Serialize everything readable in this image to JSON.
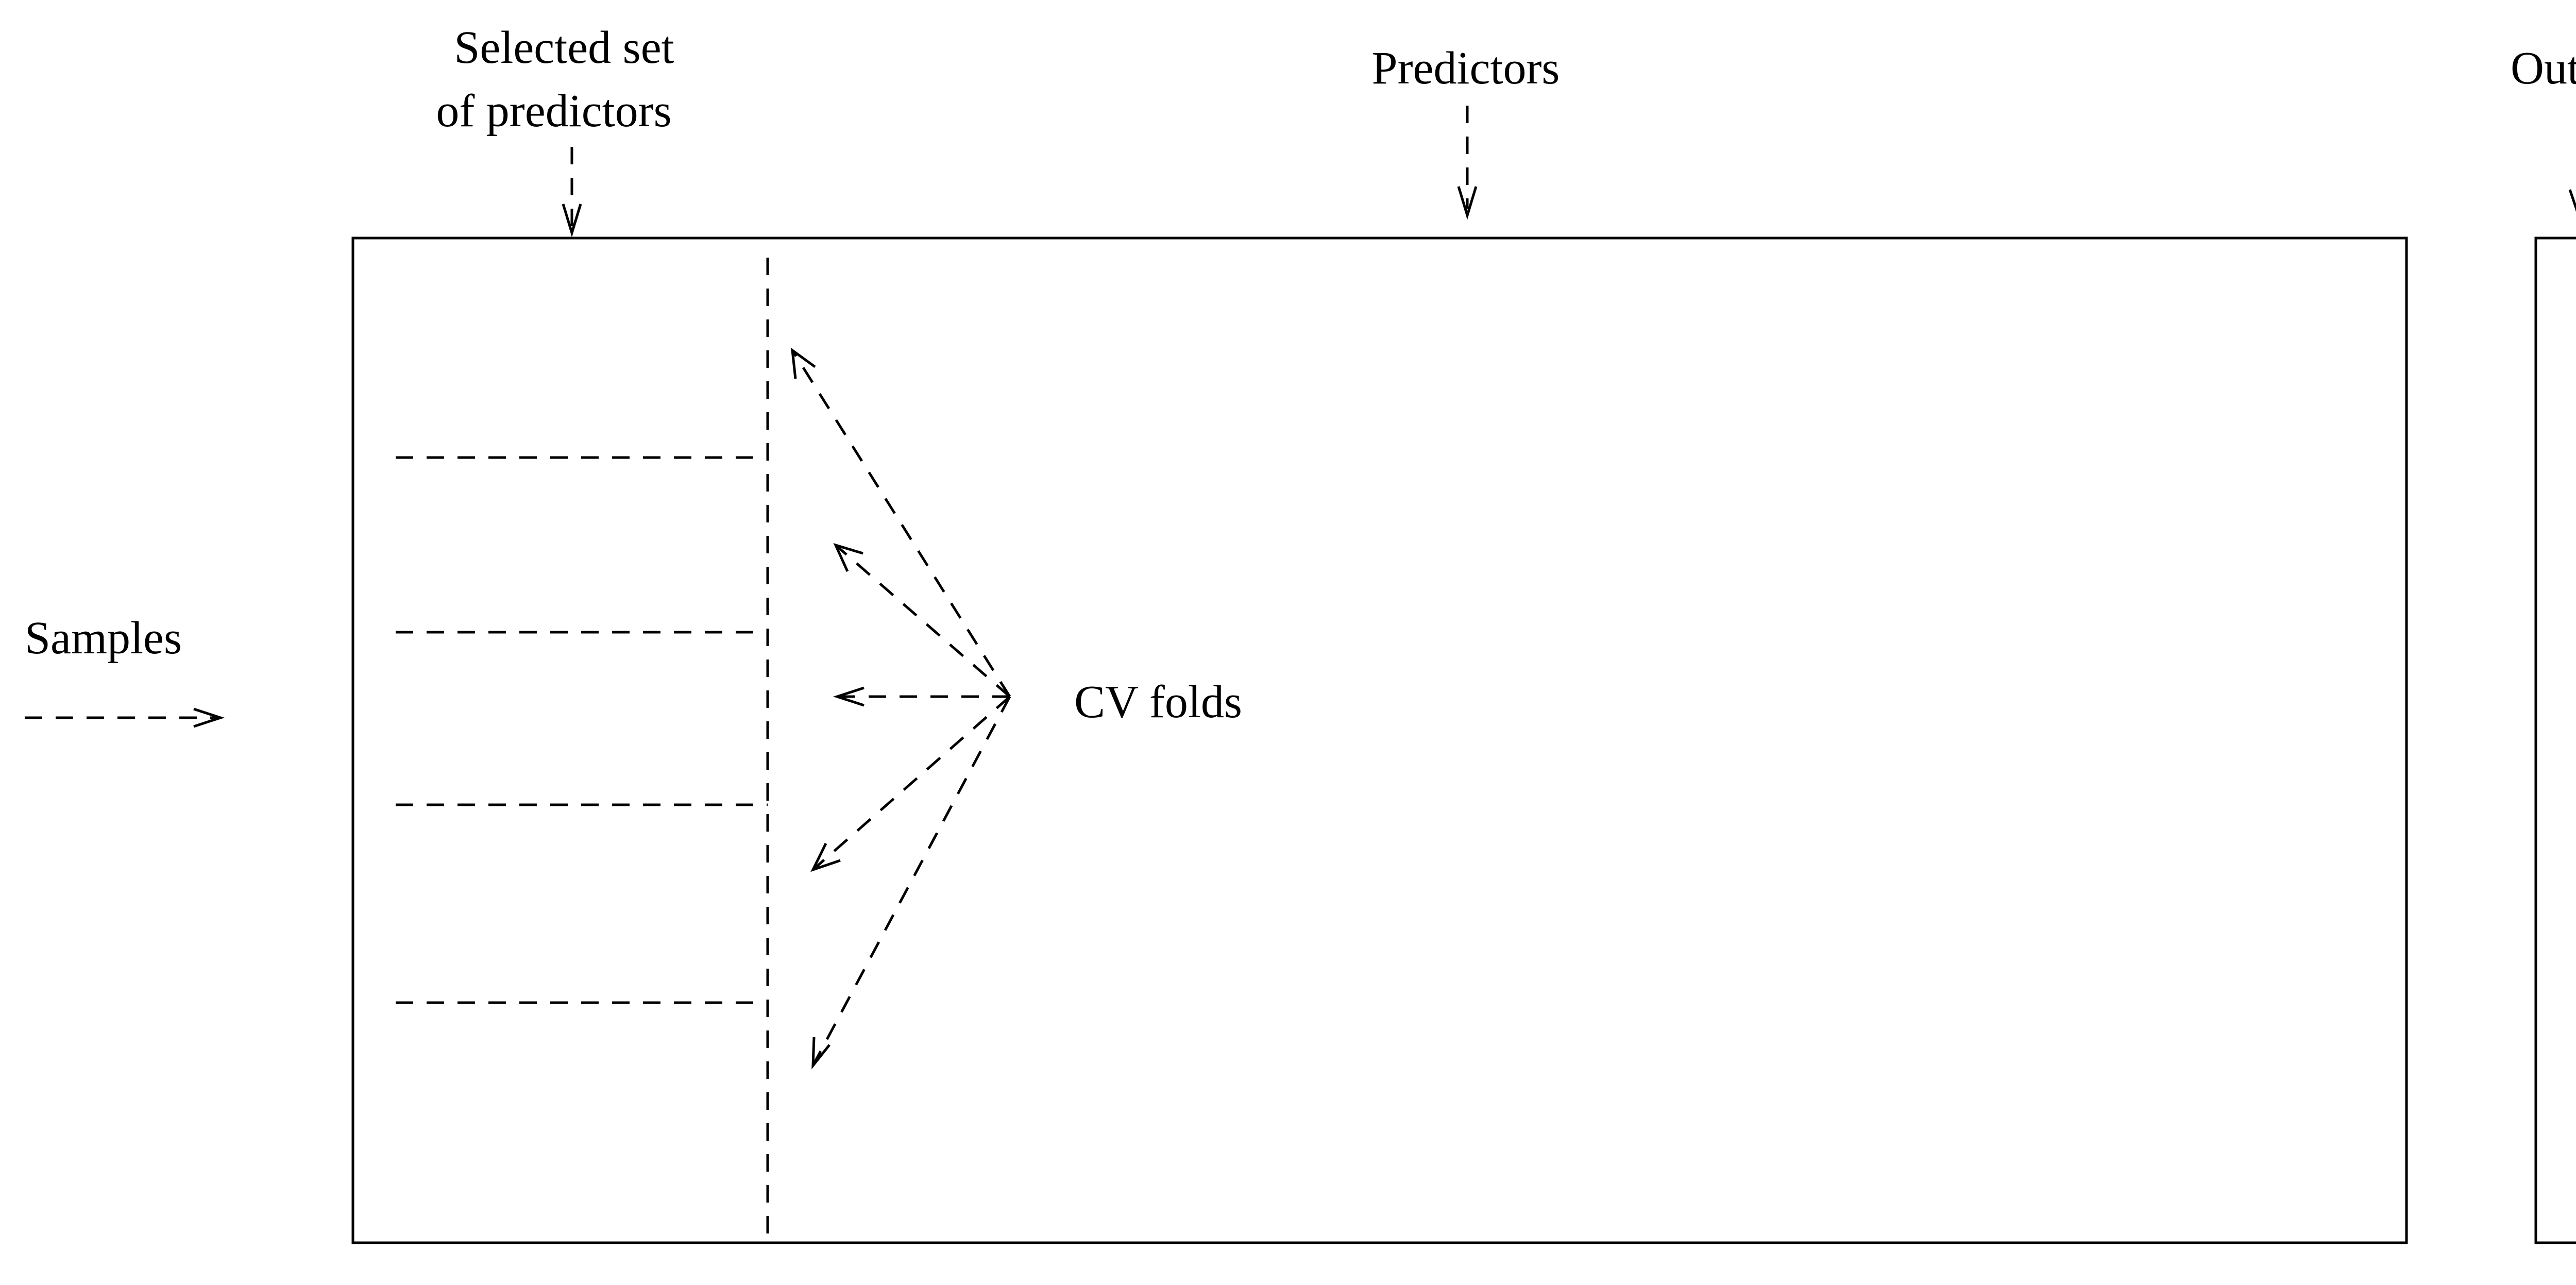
{
  "labels": {
    "selected_line1": "Selected set",
    "selected_line2": "of predictors",
    "predictors": "Predictors",
    "outcome": "Outcome",
    "samples": "Samples",
    "cv_folds": "CV folds"
  }
}
